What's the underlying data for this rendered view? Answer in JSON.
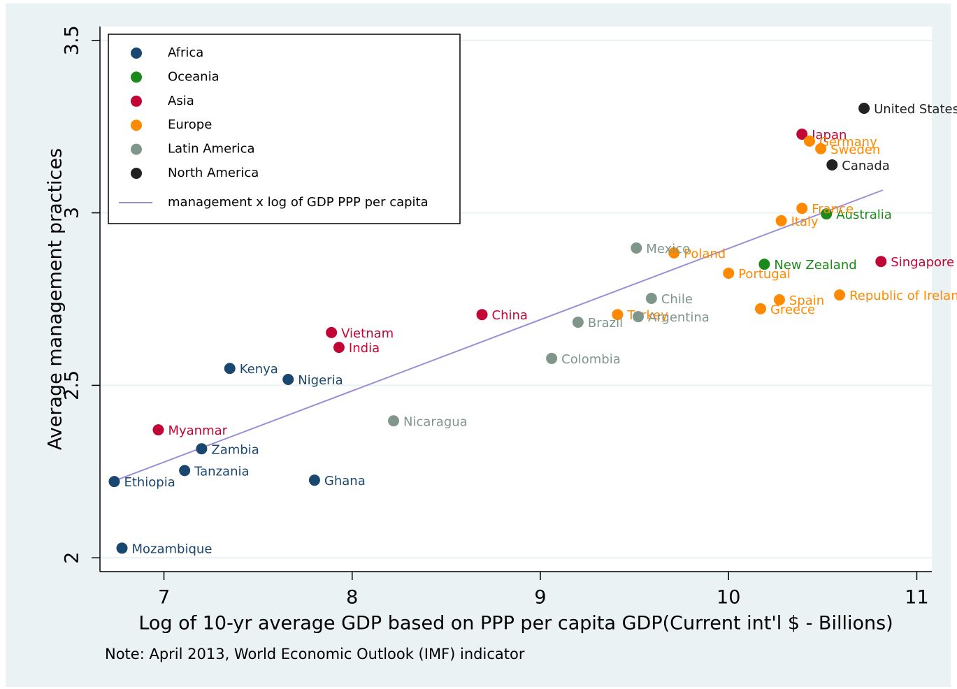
{
  "chart_data": {
    "type": "scatter",
    "ylabel": "Average management practices",
    "xlabel": "Log of 10-yr average GDP based on PPP per capita GDP(Current int'l $ - Billions)",
    "note": "Note: April 2013, World Economic Outlook (IMF) indicator",
    "xlim": [
      6.66,
      11.08
    ],
    "ylim": [
      1.96,
      3.54
    ],
    "xticks": [
      7,
      8,
      9,
      10,
      11
    ],
    "yticks": [
      2,
      2.5,
      3,
      3.5
    ],
    "grid": true,
    "legend": "top-left",
    "series": [
      {
        "name": "Africa",
        "color": "#1a476f",
        "labels": [
          "Ethiopia",
          "Mozambique",
          "Zambia",
          "Tanzania",
          "Kenya",
          "Nigeria",
          "Ghana"
        ],
        "x": [
          6.736,
          6.777,
          7.2,
          7.11,
          7.35,
          7.66,
          7.8
        ],
        "y": [
          2.221,
          2.028,
          2.316,
          2.253,
          2.549,
          2.517,
          2.225
        ]
      },
      {
        "name": "Oceania",
        "color": "#1b8a1b",
        "labels": [
          "Australia",
          "New Zealand"
        ],
        "x": [
          10.52,
          10.19
        ],
        "y": [
          2.997,
          2.851
        ]
      },
      {
        "name": "Asia",
        "color": "#c10534",
        "labels": [
          "Myanmar",
          "Vietnam",
          "India",
          "China",
          "Japan",
          "Singapore"
        ],
        "x": [
          6.97,
          7.89,
          7.93,
          8.69,
          10.39,
          10.81
        ],
        "y": [
          2.371,
          2.653,
          2.61,
          2.705,
          3.228,
          2.859
        ]
      },
      {
        "name": "Europe",
        "color": "#ff8a00",
        "labels": [
          "Poland",
          "Turkey",
          "Portugal",
          "Greece",
          "Spain",
          "Italy",
          "France",
          "Germany",
          "Sweden",
          "Republic of Ireland"
        ],
        "x": [
          9.71,
          9.41,
          10.0,
          10.17,
          10.27,
          10.28,
          10.39,
          10.43,
          10.49,
          10.59
        ],
        "y": [
          2.884,
          2.705,
          2.825,
          2.722,
          2.748,
          2.977,
          3.013,
          3.208,
          3.186,
          2.762
        ]
      },
      {
        "name": "Latin America",
        "color": "#7f968b",
        "labels": [
          "Mexico",
          "Chile",
          "Argentina",
          "Brazil",
          "Colombia",
          "Nicaragua"
        ],
        "x": [
          9.51,
          9.59,
          9.52,
          9.2,
          9.06,
          8.22
        ],
        "y": [
          2.898,
          2.752,
          2.699,
          2.683,
          2.578,
          2.397
        ]
      },
      {
        "name": "North America",
        "color": "#222222",
        "labels": [
          "United States",
          "Canada"
        ],
        "x": [
          10.72,
          10.55
        ],
        "y": [
          3.303,
          3.139
        ]
      }
    ],
    "fit": {
      "name": "management x log of GDP PPP per capita",
      "color": "#9b8fd8",
      "x": [
        6.736,
        10.82
      ],
      "y": [
        2.223,
        3.066
      ]
    }
  }
}
